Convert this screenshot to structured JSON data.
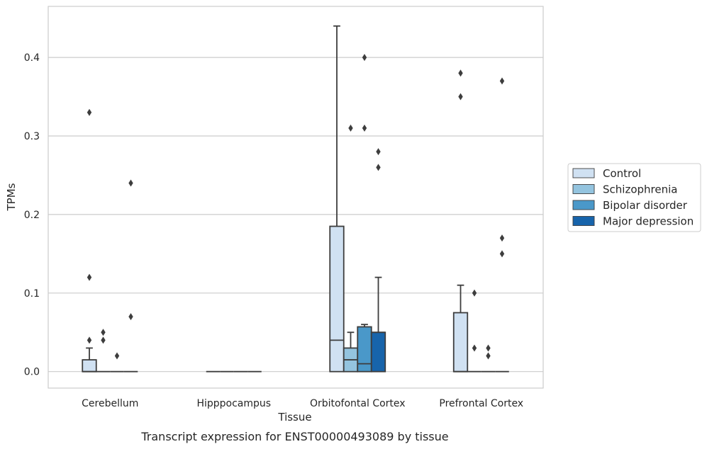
{
  "caption": "Transcript expression for ENST00000493089 by tissue",
  "chart_data": {
    "type": "box",
    "xlabel": "Tissue",
    "ylabel": "TPMs",
    "ylim": [
      -0.021,
      0.465
    ],
    "yticks": [
      0.0,
      0.1,
      0.2,
      0.3,
      0.4
    ],
    "ytick_labels": [
      "0.0",
      "0.1",
      "0.2",
      "0.3",
      "0.4"
    ],
    "grid": "horizontal",
    "legend_position": "right",
    "categories": [
      "Cerebellum",
      "Hipppocampus",
      "Orbitofontal Cortex",
      "Prefrontal Cortex"
    ],
    "series": [
      {
        "name": "Control",
        "color": "#d0e1f2",
        "boxes": [
          {
            "q1": 0.0,
            "median": 0.0,
            "q3": 0.015,
            "whislo": 0.0,
            "whishi": 0.03,
            "fliers": [
              0.33,
              0.12,
              0.04
            ]
          },
          {
            "q1": 0.0,
            "median": 0.0,
            "q3": 0.0,
            "whislo": 0.0,
            "whishi": 0.0,
            "fliers": []
          },
          {
            "q1": 0.0,
            "median": 0.04,
            "q3": 0.185,
            "whislo": 0.0,
            "whishi": 0.44,
            "fliers": []
          },
          {
            "q1": 0.0,
            "median": 0.0,
            "q3": 0.075,
            "whislo": 0.0,
            "whishi": 0.11,
            "fliers": [
              0.38,
              0.35
            ]
          }
        ]
      },
      {
        "name": "Schizophrenia",
        "color": "#94c4df",
        "boxes": [
          {
            "q1": 0.0,
            "median": 0.0,
            "q3": 0.0,
            "whislo": 0.0,
            "whishi": 0.0,
            "fliers": [
              0.05,
              0.04
            ]
          },
          {
            "q1": 0.0,
            "median": 0.0,
            "q3": 0.0,
            "whislo": 0.0,
            "whishi": 0.0,
            "fliers": []
          },
          {
            "q1": 0.0,
            "median": 0.015,
            "q3": 0.03,
            "whislo": 0.0,
            "whishi": 0.05,
            "fliers": [
              0.31
            ]
          },
          {
            "q1": 0.0,
            "median": 0.0,
            "q3": 0.0,
            "whislo": 0.0,
            "whishi": 0.0,
            "fliers": [
              0.1,
              0.03
            ]
          }
        ]
      },
      {
        "name": "Bipolar disorder",
        "color": "#4a98c9",
        "boxes": [
          {
            "q1": 0.0,
            "median": 0.0,
            "q3": 0.0,
            "whislo": 0.0,
            "whishi": 0.0,
            "fliers": [
              0.02
            ]
          },
          {
            "q1": 0.0,
            "median": 0.0,
            "q3": 0.0,
            "whislo": 0.0,
            "whishi": 0.0,
            "fliers": []
          },
          {
            "q1": 0.0,
            "median": 0.01,
            "q3": 0.057,
            "whislo": 0.0,
            "whishi": 0.06,
            "fliers": [
              0.4,
              0.31
            ]
          },
          {
            "q1": 0.0,
            "median": 0.0,
            "q3": 0.0,
            "whislo": 0.0,
            "whishi": 0.0,
            "fliers": [
              0.03,
              0.02
            ]
          }
        ]
      },
      {
        "name": "Major depression",
        "color": "#1764ab",
        "boxes": [
          {
            "q1": 0.0,
            "median": 0.0,
            "q3": 0.0,
            "whislo": 0.0,
            "whishi": 0.0,
            "fliers": [
              0.24,
              0.07
            ]
          },
          {
            "q1": 0.0,
            "median": 0.0,
            "q3": 0.0,
            "whislo": 0.0,
            "whishi": 0.0,
            "fliers": []
          },
          {
            "q1": 0.0,
            "median": 0.05,
            "q3": 0.05,
            "whislo": 0.0,
            "whishi": 0.12,
            "fliers": [
              0.28,
              0.26
            ]
          },
          {
            "q1": 0.0,
            "median": 0.0,
            "q3": 0.0,
            "whislo": 0.0,
            "whishi": 0.0,
            "fliers": [
              0.37,
              0.17,
              0.15
            ]
          }
        ]
      }
    ]
  }
}
